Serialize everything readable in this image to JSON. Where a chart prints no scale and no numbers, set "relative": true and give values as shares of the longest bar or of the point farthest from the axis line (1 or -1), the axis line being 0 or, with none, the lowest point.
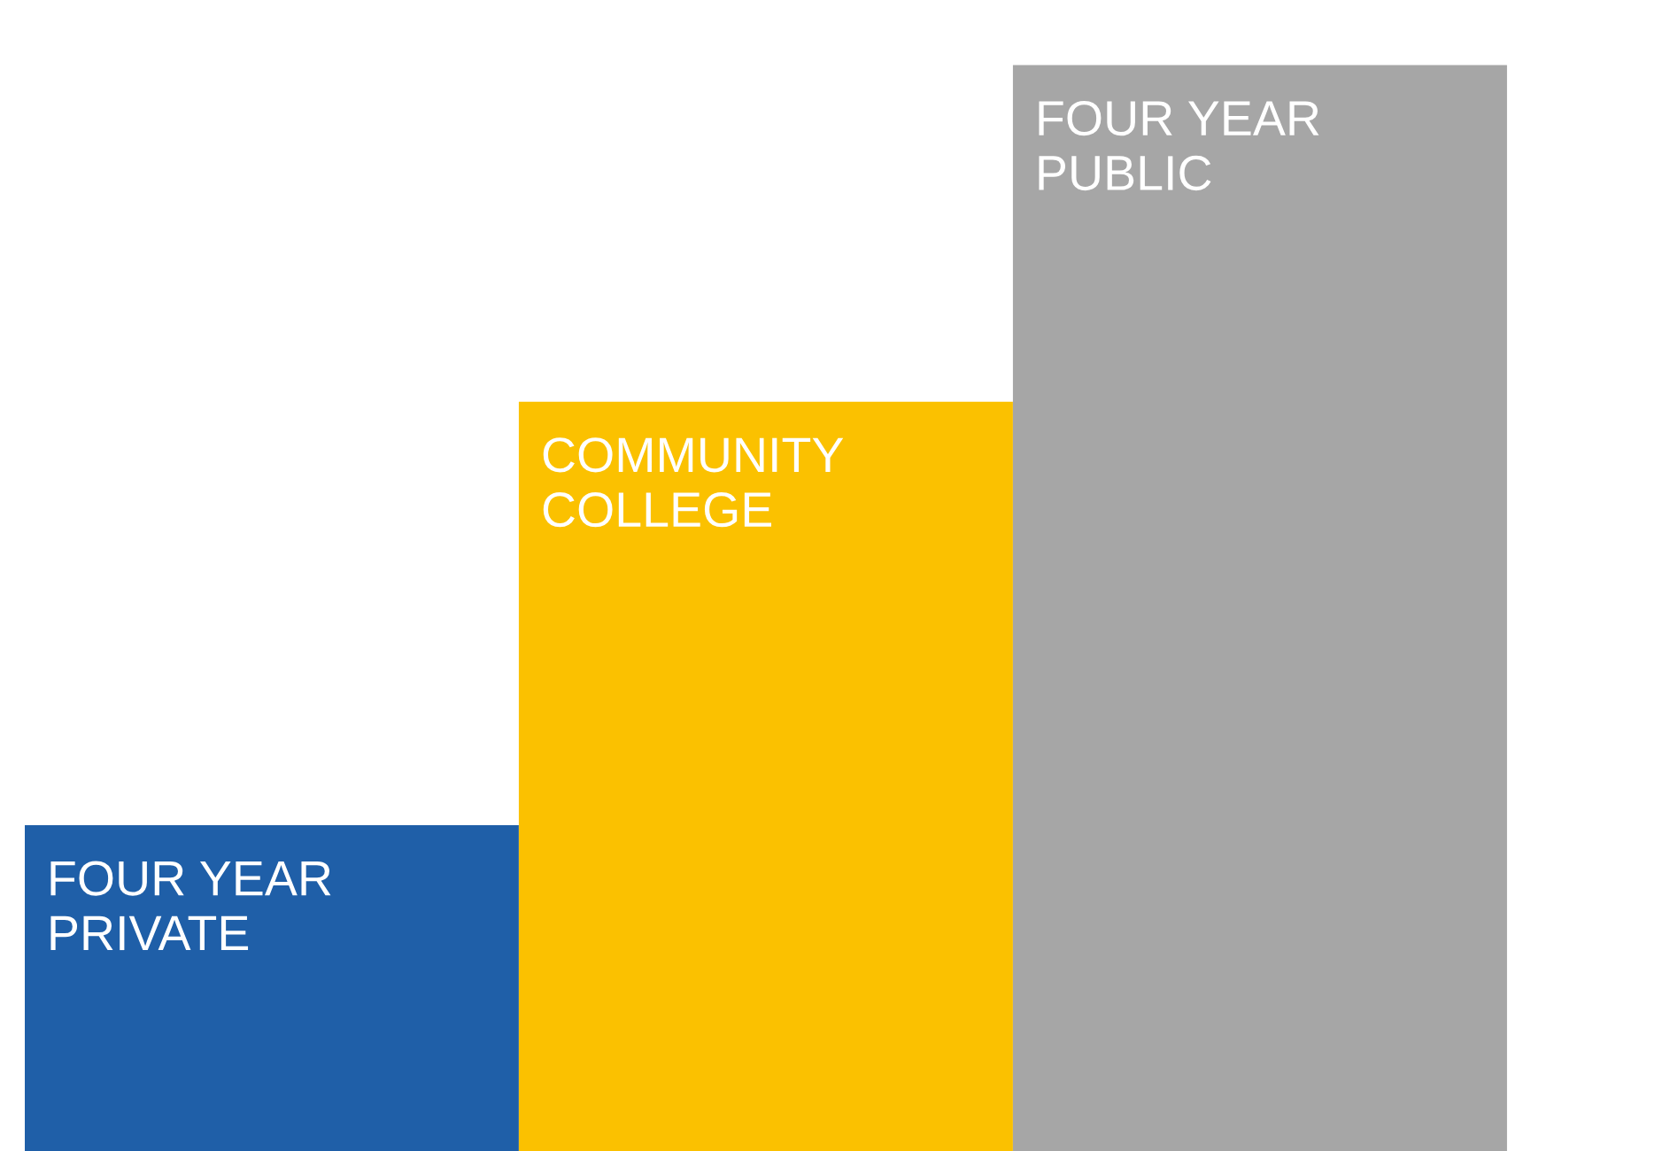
{
  "chart_data": {
    "type": "bar",
    "relative": true,
    "categories": [
      "FOUR YEAR\nPRIVATE",
      "COMMUNITY\nCOLLEGE",
      "FOUR YEAR\nPUBLIC"
    ],
    "values": [
      0.3,
      0.69,
      1.0
    ],
    "colors": [
      "#1f5fa8",
      "#fbc100",
      "#a6a6a6"
    ]
  }
}
